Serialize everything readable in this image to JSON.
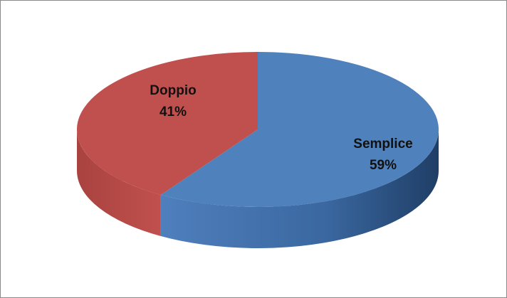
{
  "chart_data": {
    "type": "pie",
    "style": "3d",
    "title": "",
    "legend": "none",
    "slices": [
      {
        "label": "Semplice",
        "value": 59,
        "percent_label": "59%",
        "color": "#4f81bd",
        "side_color": "#2e5387"
      },
      {
        "label": "Doppio",
        "value": 41,
        "percent_label": "41%",
        "color": "#c0504d",
        "side_color": "#8e3432"
      }
    ]
  }
}
